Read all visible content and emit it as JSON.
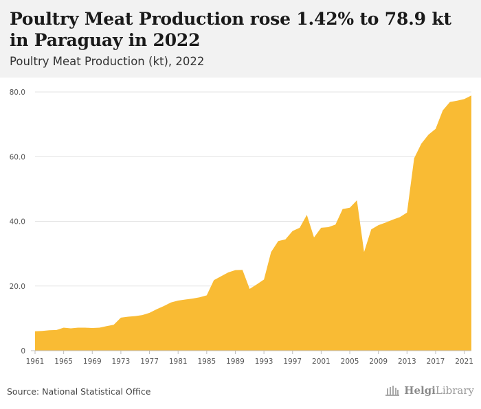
{
  "header": {
    "title": "Poultry Meat Production rose 1.42% to 78.9 kt in Paraguay in 2022",
    "subtitle": "Poultry Meat Production (kt), 2022"
  },
  "footer": {
    "source": "Source: National Statistical Office",
    "brand_bold": "Helgi",
    "brand_rest": "Library"
  },
  "colors": {
    "area": "#f9bb34",
    "grid": "#e3e3e3",
    "axis_text": "#555555",
    "header_bg": "#f2f2f2"
  },
  "chart_data": {
    "type": "area",
    "title": "Poultry Meat Production (kt), 2022",
    "xlabel": "",
    "ylabel": "",
    "ylim": [
      0,
      80
    ],
    "yticks": [
      "0",
      "20.0",
      "40.0",
      "60.0",
      "80.0"
    ],
    "ytick_values": [
      0,
      20,
      40,
      60,
      80
    ],
    "xticks": [
      "1961",
      "1965",
      "1969",
      "1973",
      "1977",
      "1981",
      "1985",
      "1989",
      "1993",
      "1997",
      "2001",
      "2005",
      "2009",
      "2013",
      "2017",
      "2021"
    ],
    "grid": true,
    "x": [
      1961,
      1962,
      1963,
      1964,
      1965,
      1966,
      1967,
      1968,
      1969,
      1970,
      1971,
      1972,
      1973,
      1974,
      1975,
      1976,
      1977,
      1978,
      1979,
      1980,
      1981,
      1982,
      1983,
      1984,
      1985,
      1986,
      1987,
      1988,
      1989,
      1990,
      1991,
      1992,
      1993,
      1994,
      1995,
      1996,
      1997,
      1998,
      1999,
      2000,
      2001,
      2002,
      2003,
      2004,
      2005,
      2006,
      2007,
      2008,
      2009,
      2010,
      2011,
      2012,
      2013,
      2014,
      2015,
      2016,
      2017,
      2018,
      2019,
      2020,
      2021,
      2022
    ],
    "values": [
      6.0,
      6.1,
      6.3,
      6.4,
      7.1,
      6.9,
      7.1,
      7.1,
      7.0,
      7.1,
      7.6,
      8.0,
      10.2,
      10.5,
      10.7,
      11.0,
      11.7,
      12.8,
      13.8,
      14.9,
      15.5,
      15.8,
      16.1,
      16.5,
      17.1,
      21.8,
      23.0,
      24.2,
      24.9,
      25.0,
      19.1,
      20.5,
      22.0,
      30.5,
      33.9,
      34.4,
      37.0,
      38.0,
      42.0,
      35.0,
      38.0,
      38.2,
      39.0,
      43.8,
      44.2,
      46.5,
      30.5,
      37.5,
      38.8,
      39.6,
      40.5,
      41.3,
      42.7,
      59.5,
      64.0,
      66.8,
      68.6,
      74.3,
      76.9,
      77.3,
      77.8,
      78.9
    ]
  }
}
